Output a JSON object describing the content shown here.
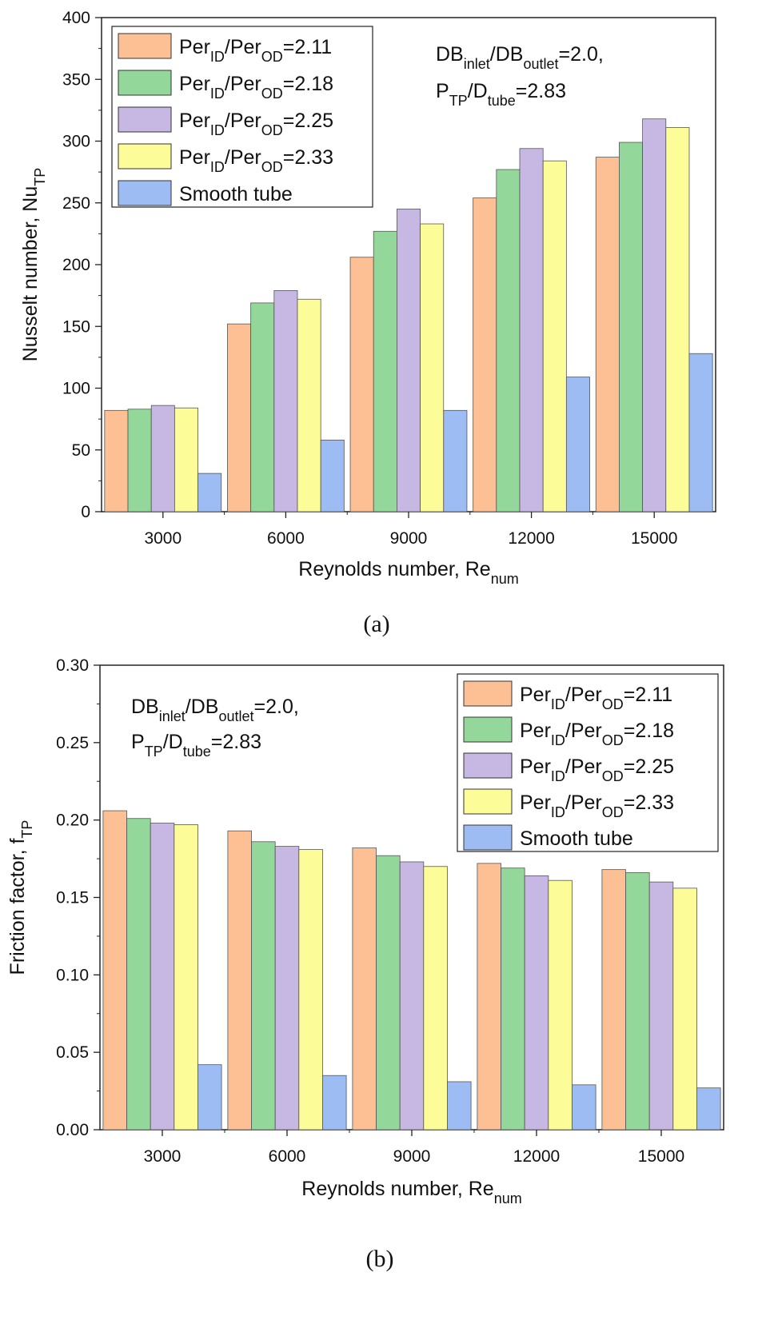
{
  "chart_data": [
    {
      "type": "bar",
      "panel_label": "(a)",
      "categories": [
        "3000",
        "6000",
        "9000",
        "12000",
        "15000"
      ],
      "series": [
        {
          "name": "Per_ID/Per_OD=2.11",
          "color": "#fdbf94",
          "values": [
            82,
            152,
            206,
            254,
            287
          ]
        },
        {
          "name": "Per_ID/Per_OD=2.18",
          "color": "#93d89a",
          "values": [
            83,
            169,
            227,
            277,
            299
          ]
        },
        {
          "name": "Per_ID/Per_OD=2.25",
          "color": "#c7b8e3",
          "values": [
            86,
            179,
            245,
            294,
            318
          ]
        },
        {
          "name": "Per_ID/Per_OD=2.33",
          "color": "#fcfc98",
          "values": [
            84,
            172,
            233,
            284,
            311
          ]
        },
        {
          "name": "Smooth tube",
          "color": "#9cbcf3",
          "values": [
            31,
            58,
            82,
            109,
            128
          ]
        }
      ],
      "legend": [
        {
          "base": "Per",
          "sub1": "ID",
          "mid": "/Per",
          "sub2": "OD",
          "tail": "=2.11"
        },
        {
          "base": "Per",
          "sub1": "ID",
          "mid": "/Per",
          "sub2": "OD",
          "tail": "=2.18"
        },
        {
          "base": "Per",
          "sub1": "ID",
          "mid": "/Per",
          "sub2": "OD",
          "tail": "=2.25"
        },
        {
          "base": "Per",
          "sub1": "ID",
          "mid": "/Per",
          "sub2": "OD",
          "tail": "=2.33"
        },
        {
          "base": "Smooth tube",
          "sub1": "",
          "mid": "",
          "sub2": "",
          "tail": ""
        }
      ],
      "legend_position": "top-left",
      "annotation": {
        "line1": {
          "a": "DB",
          "a_sub": "inlet",
          "b": "/DB",
          "b_sub": "outlet",
          "c": "=2.0,"
        },
        "line2": {
          "a": "P",
          "a_sub": "TP",
          "b": "/D",
          "b_sub": "tube",
          "c": "=2.83"
        }
      },
      "ylim": [
        0,
        400
      ],
      "yticks": [
        "0",
        "50",
        "100",
        "150",
        "200",
        "250",
        "300",
        "350",
        "400"
      ],
      "ytick_values": [
        0,
        50,
        100,
        150,
        200,
        250,
        300,
        350,
        400
      ],
      "xlabel": {
        "main": "Reynolds number, Re",
        "sub": "num"
      },
      "ylabel": {
        "main": "Nusselt number, Nu",
        "sub": "TP"
      }
    },
    {
      "type": "bar",
      "panel_label": "(b)",
      "categories": [
        "3000",
        "6000",
        "9000",
        "12000",
        "15000"
      ],
      "series": [
        {
          "name": "Per_ID/Per_OD=2.11",
          "color": "#fdbf94",
          "values": [
            0.206,
            0.193,
            0.182,
            0.172,
            0.168
          ]
        },
        {
          "name": "Per_ID/Per_OD=2.18",
          "color": "#93d89a",
          "values": [
            0.201,
            0.186,
            0.177,
            0.169,
            0.166
          ]
        },
        {
          "name": "Per_ID/Per_OD=2.25",
          "color": "#c7b8e3",
          "values": [
            0.198,
            0.183,
            0.173,
            0.164,
            0.16
          ]
        },
        {
          "name": "Per_ID/Per_OD=2.33",
          "color": "#fcfc98",
          "values": [
            0.197,
            0.181,
            0.17,
            0.161,
            0.156
          ]
        },
        {
          "name": "Smooth tube",
          "color": "#9cbcf3",
          "values": [
            0.042,
            0.035,
            0.031,
            0.029,
            0.027
          ]
        }
      ],
      "legend": [
        {
          "base": "Per",
          "sub1": "ID",
          "mid": "/Per",
          "sub2": "OD",
          "tail": "=2.11"
        },
        {
          "base": "Per",
          "sub1": "ID",
          "mid": "/Per",
          "sub2": "OD",
          "tail": "=2.18"
        },
        {
          "base": "Per",
          "sub1": "ID",
          "mid": "/Per",
          "sub2": "OD",
          "tail": "=2.25"
        },
        {
          "base": "Per",
          "sub1": "ID",
          "mid": "/Per",
          "sub2": "OD",
          "tail": "=2.33"
        },
        {
          "base": "Smooth tube",
          "sub1": "",
          "mid": "",
          "sub2": "",
          "tail": ""
        }
      ],
      "legend_position": "top-right",
      "annotation": {
        "line1": {
          "a": "DB",
          "a_sub": "inlet",
          "b": "/DB",
          "b_sub": "outlet",
          "c": "=2.0,"
        },
        "line2": {
          "a": "P",
          "a_sub": "TP",
          "b": "/D",
          "b_sub": "tube",
          "c": "=2.83"
        }
      },
      "ylim": [
        0,
        0.3
      ],
      "yticks": [
        "0.00",
        "0.05",
        "0.10",
        "0.15",
        "0.20",
        "0.25",
        "0.30"
      ],
      "ytick_values": [
        0,
        0.05,
        0.1,
        0.15,
        0.2,
        0.25,
        0.3
      ],
      "xlabel": {
        "main": "Reynolds number, Re",
        "sub": "num"
      },
      "ylabel": {
        "main": "Friction factor, f",
        "sub": "TP"
      }
    }
  ]
}
